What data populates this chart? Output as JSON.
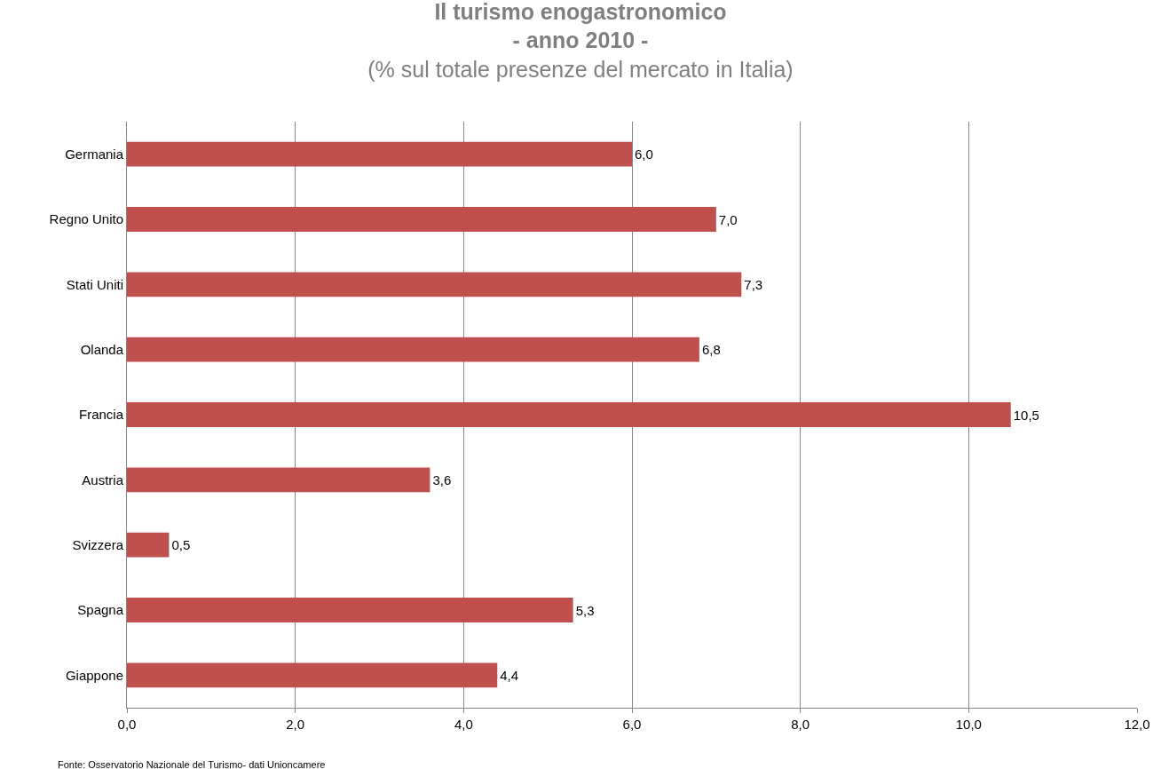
{
  "chart_data": {
    "type": "bar",
    "orientation": "horizontal",
    "title": "Il turismo enogastronomico\n- anno 2010 -",
    "subtitle": "(% sul totale presenze del mercato in Italia)",
    "categories": [
      "Germania",
      "Regno Unito",
      "Stati Uniti",
      "Olanda",
      "Francia",
      "Austria",
      "Svizzera",
      "Spagna",
      "Giappone"
    ],
    "values": [
      6.0,
      7.0,
      7.3,
      6.8,
      10.5,
      3.6,
      0.5,
      5.3,
      4.4
    ],
    "value_labels": [
      "6,0",
      "7,0",
      "7,3",
      "6,8",
      "10,5",
      "3,6",
      "0,5",
      "5,3",
      "4,4"
    ],
    "color": "#c0504d",
    "xlim": [
      0,
      12
    ],
    "xticks": [
      {
        "value": 0,
        "label": "0,0"
      },
      {
        "value": 2,
        "label": "2,0"
      },
      {
        "value": 4,
        "label": "4,0"
      },
      {
        "value": 6,
        "label": "6,0"
      },
      {
        "value": 8,
        "label": "8,0"
      },
      {
        "value": 10,
        "label": "10,0"
      },
      {
        "value": 12,
        "label": "12,0"
      }
    ],
    "grid": "x",
    "legend": false,
    "annotations": [
      "Fonte: Osservatorio Nazionale del Turismo- dati Unioncamere"
    ]
  }
}
